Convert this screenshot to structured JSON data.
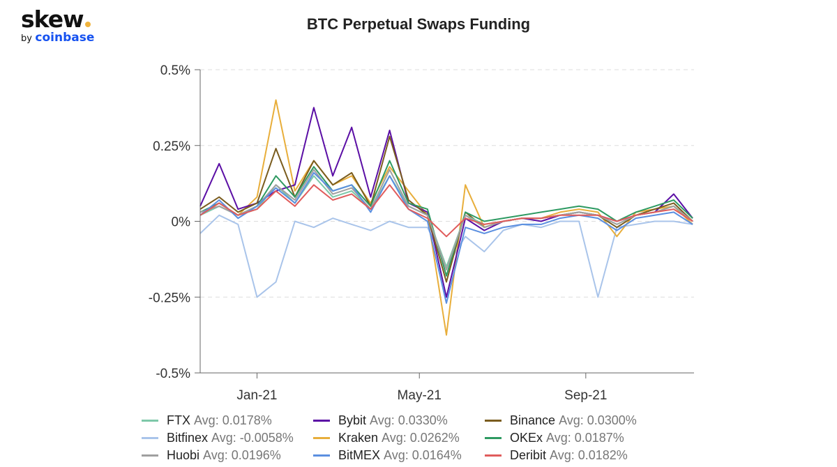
{
  "logo": {
    "text": "skew",
    "by": "by",
    "brand": "coinbase"
  },
  "chart_data": {
    "type": "line",
    "title": "BTC Perpetual Swaps Funding",
    "xlabel": "",
    "ylabel": "",
    "ylim": [
      -0.5,
      0.5
    ],
    "xlim": [
      "2020-11-20",
      "2021-11-20"
    ],
    "y_ticks": [
      {
        "v": 0.5,
        "label": "0.5%"
      },
      {
        "v": 0.25,
        "label": "0.25%"
      },
      {
        "v": 0,
        "label": "0%"
      },
      {
        "v": -0.25,
        "label": "-0.25%"
      },
      {
        "v": -0.5,
        "label": "-0.5%"
      }
    ],
    "x_ticks": [
      {
        "date": "2021-01-01",
        "label": "Jan-21"
      },
      {
        "date": "2021-05-01",
        "label": "May-21"
      },
      {
        "date": "2021-09-01",
        "label": "Sep-21"
      }
    ],
    "grid": "horizontal dashed",
    "legend_position": "bottom",
    "y_unit": "%",
    "x": [
      "2020-11-20",
      "2020-12-04",
      "2020-12-18",
      "2021-01-01",
      "2021-01-15",
      "2021-01-29",
      "2021-02-12",
      "2021-02-26",
      "2021-03-12",
      "2021-03-26",
      "2021-04-09",
      "2021-04-23",
      "2021-05-07",
      "2021-05-21",
      "2021-06-04",
      "2021-06-18",
      "2021-07-02",
      "2021-07-16",
      "2021-07-30",
      "2021-08-13",
      "2021-08-27",
      "2021-09-10",
      "2021-09-24",
      "2021-10-08",
      "2021-10-22",
      "2021-11-05",
      "2021-11-19"
    ],
    "series": [
      {
        "name": "Bitfinex",
        "avg": "Avg: -0.0058%",
        "color": "#a9c4ea",
        "values": [
          -0.04,
          0.02,
          -0.01,
          -0.25,
          -0.2,
          0.0,
          -0.02,
          0.01,
          -0.01,
          -0.03,
          0.0,
          -0.02,
          -0.02,
          -0.15,
          -0.05,
          -0.1,
          -0.03,
          -0.01,
          -0.02,
          0.0,
          0.0,
          -0.25,
          -0.02,
          -0.01,
          0.0,
          0.0,
          -0.01
        ]
      },
      {
        "name": "Kraken",
        "avg": "Avg: 0.0262%",
        "color": "#e8ae3b",
        "values": [
          0.03,
          0.05,
          0.02,
          0.08,
          0.4,
          0.1,
          0.2,
          0.12,
          0.15,
          0.06,
          0.18,
          0.1,
          0.02,
          -0.375,
          0.12,
          -0.02,
          0.0,
          0.01,
          0.01,
          0.03,
          0.04,
          0.03,
          -0.05,
          0.03,
          0.04,
          0.05,
          -0.01
        ]
      },
      {
        "name": "Bybit",
        "avg": "Avg: 0.0330%",
        "color": "#5b0fa5",
        "values": [
          0.05,
          0.19,
          0.04,
          0.06,
          0.1,
          0.12,
          0.375,
          0.15,
          0.31,
          0.08,
          0.3,
          0.06,
          0.03,
          -0.25,
          0.01,
          -0.03,
          0.0,
          0.01,
          0.0,
          0.02,
          0.03,
          0.02,
          0.0,
          0.02,
          0.03,
          0.09,
          0.01
        ]
      },
      {
        "name": "Binance",
        "avg": "Avg: 0.0300%",
        "color": "#7a5c1e",
        "values": [
          0.04,
          0.08,
          0.03,
          0.06,
          0.24,
          0.08,
          0.2,
          0.12,
          0.16,
          0.05,
          0.28,
          0.07,
          0.02,
          -0.2,
          0.03,
          -0.02,
          0.0,
          0.01,
          0.01,
          0.02,
          0.03,
          0.02,
          -0.02,
          0.02,
          0.04,
          0.06,
          0.0
        ]
      },
      {
        "name": "OKEx",
        "avg": "Avg: 0.0187%",
        "color": "#2e9a62",
        "values": [
          0.03,
          0.06,
          0.02,
          0.05,
          0.15,
          0.08,
          0.18,
          0.1,
          0.12,
          0.05,
          0.2,
          0.06,
          0.04,
          -0.18,
          0.03,
          0.0,
          0.01,
          0.02,
          0.03,
          0.04,
          0.05,
          0.04,
          0.0,
          0.03,
          0.05,
          0.07,
          0.01
        ]
      },
      {
        "name": "FTX",
        "avg": "Avg: 0.0178%",
        "color": "#7ec8a9",
        "values": [
          0.02,
          0.05,
          0.02,
          0.04,
          0.12,
          0.06,
          0.15,
          0.08,
          0.1,
          0.04,
          0.15,
          0.05,
          0.02,
          -0.15,
          0.02,
          -0.01,
          0.0,
          0.01,
          0.01,
          0.02,
          0.03,
          0.02,
          -0.01,
          0.02,
          0.03,
          0.05,
          0.0
        ]
      },
      {
        "name": "Huobi",
        "avg": "Avg: 0.0196%",
        "color": "#a0a0a0",
        "values": [
          0.03,
          0.05,
          0.02,
          0.05,
          0.12,
          0.07,
          0.17,
          0.09,
          0.11,
          0.04,
          0.17,
          0.05,
          0.02,
          -0.16,
          0.02,
          -0.02,
          0.0,
          0.01,
          0.01,
          0.02,
          0.03,
          0.02,
          -0.01,
          0.02,
          0.03,
          0.05,
          0.0
        ]
      },
      {
        "name": "BitMEX",
        "avg": "Avg: 0.0164%",
        "color": "#5b8fe0",
        "values": [
          0.02,
          0.07,
          0.01,
          0.05,
          0.11,
          0.06,
          0.16,
          0.1,
          0.12,
          0.03,
          0.15,
          0.04,
          0.0,
          -0.27,
          -0.02,
          -0.04,
          -0.02,
          -0.01,
          -0.01,
          0.01,
          0.02,
          0.01,
          -0.03,
          0.01,
          0.02,
          0.03,
          -0.01
        ]
      },
      {
        "name": "Deribit",
        "avg": "Avg: 0.0182%",
        "color": "#e05c5c",
        "values": [
          0.02,
          0.06,
          0.02,
          0.04,
          0.1,
          0.05,
          0.12,
          0.07,
          0.09,
          0.04,
          0.12,
          0.04,
          0.01,
          -0.05,
          0.01,
          -0.01,
          0.0,
          0.01,
          0.01,
          0.02,
          0.02,
          0.02,
          0.0,
          0.02,
          0.03,
          0.04,
          0.0
        ]
      }
    ]
  },
  "legend_order": [
    "FTX",
    "Bybit",
    "Binance",
    "Bitfinex",
    "Kraken",
    "OKEx",
    "Huobi",
    "BitMEX",
    "Deribit"
  ]
}
